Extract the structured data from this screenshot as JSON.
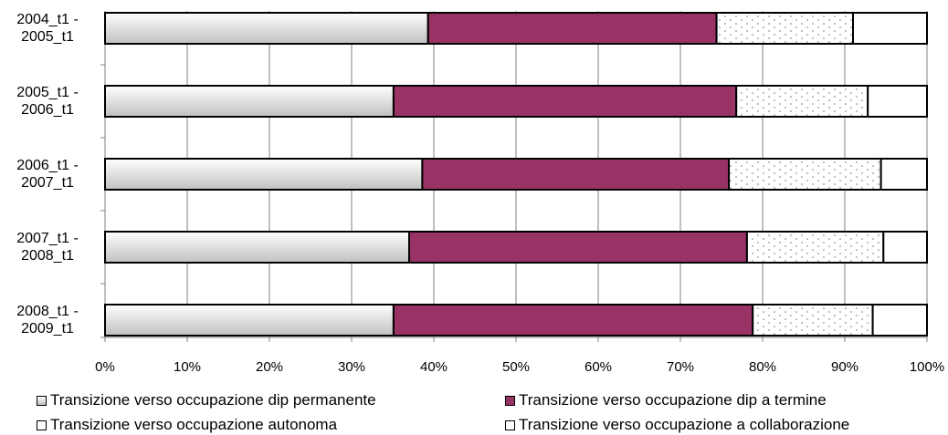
{
  "chart_data": {
    "type": "stacked_barh",
    "categories": [
      "2004_t1 -\n2005_t1",
      "2005_t1 -\n2006_t1",
      "2006_t1 -\n2007_t1",
      "2007_t1 -\n2008_t1",
      "2008_t1 -\n2009_t1"
    ],
    "series": [
      {
        "name": "Transizione verso occupazione dip permanente",
        "color": "#c0c0c0",
        "values": [
          39.3,
          35.1,
          38.6,
          37.0,
          35.1
        ]
      },
      {
        "name": "Transizione verso occupazione dip a termine",
        "color": "#993366",
        "values": [
          35.1,
          41.7,
          37.3,
          41.1,
          43.7
        ]
      },
      {
        "name": "Transizione verso occupazione autonoma",
        "color": "#ffffff",
        "pattern": "dots",
        "values": [
          16.6,
          16.0,
          18.5,
          16.6,
          14.6
        ]
      },
      {
        "name": "Transizione verso occupazione a collaborazione",
        "color": "#ffffff",
        "values": [
          9.0,
          7.2,
          5.6,
          5.3,
          6.6
        ]
      }
    ],
    "xlim": [
      0,
      100
    ],
    "xticks": [
      {
        "value": 0,
        "label": "0%"
      },
      {
        "value": 10,
        "label": "10%"
      },
      {
        "value": 20,
        "label": "20%"
      },
      {
        "value": 30,
        "label": "30%"
      },
      {
        "value": 40,
        "label": "40%"
      },
      {
        "value": 50,
        "label": "50%"
      },
      {
        "value": 60,
        "label": "60%"
      },
      {
        "value": 70,
        "label": "70%"
      },
      {
        "value": 80,
        "label": "80%"
      },
      {
        "value": 90,
        "label": "90%"
      },
      {
        "value": 100,
        "label": "100%"
      }
    ],
    "grid": true
  }
}
